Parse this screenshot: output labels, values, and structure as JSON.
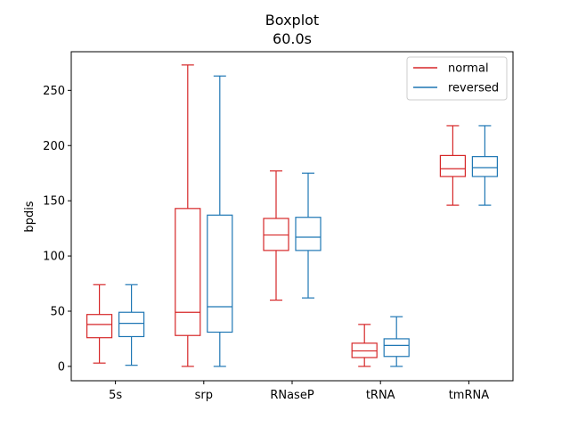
{
  "chart_data": {
    "type": "boxplot",
    "title": "Boxplot",
    "subtitle": "60.0s",
    "xlabel": "",
    "ylabel": "bpdis",
    "categories": [
      "5s",
      "srp",
      "RNaseP",
      "tRNA",
      "tmRNA"
    ],
    "ylim": [
      -13,
      285
    ],
    "yticks": [
      0,
      50,
      100,
      150,
      200,
      250
    ],
    "grid": false,
    "legend_position": "top-right",
    "series": [
      {
        "name": "normal",
        "color": "#d62728",
        "boxes": [
          {
            "whislo": 3,
            "q1": 26,
            "median": 38,
            "q3": 47,
            "whishi": 74
          },
          {
            "whislo": 0,
            "q1": 28,
            "median": 49,
            "q3": 143,
            "whishi": 273
          },
          {
            "whislo": 60,
            "q1": 105,
            "median": 119,
            "q3": 134,
            "whishi": 177
          },
          {
            "whislo": 0,
            "q1": 8,
            "median": 14,
            "q3": 21,
            "whishi": 38
          },
          {
            "whislo": 146,
            "q1": 172,
            "median": 179,
            "q3": 191,
            "whishi": 218
          }
        ]
      },
      {
        "name": "reversed",
        "color": "#1f77b4",
        "boxes": [
          {
            "whislo": 1,
            "q1": 27,
            "median": 39,
            "q3": 49,
            "whishi": 74
          },
          {
            "whislo": 0,
            "q1": 31,
            "median": 54,
            "q3": 137,
            "whishi": 263
          },
          {
            "whislo": 62,
            "q1": 105,
            "median": 117,
            "q3": 135,
            "whishi": 175
          },
          {
            "whislo": 0,
            "q1": 9,
            "median": 19,
            "q3": 25,
            "whishi": 45
          },
          {
            "whislo": 146,
            "q1": 172,
            "median": 180,
            "q3": 190,
            "whishi": 218
          }
        ]
      }
    ]
  }
}
